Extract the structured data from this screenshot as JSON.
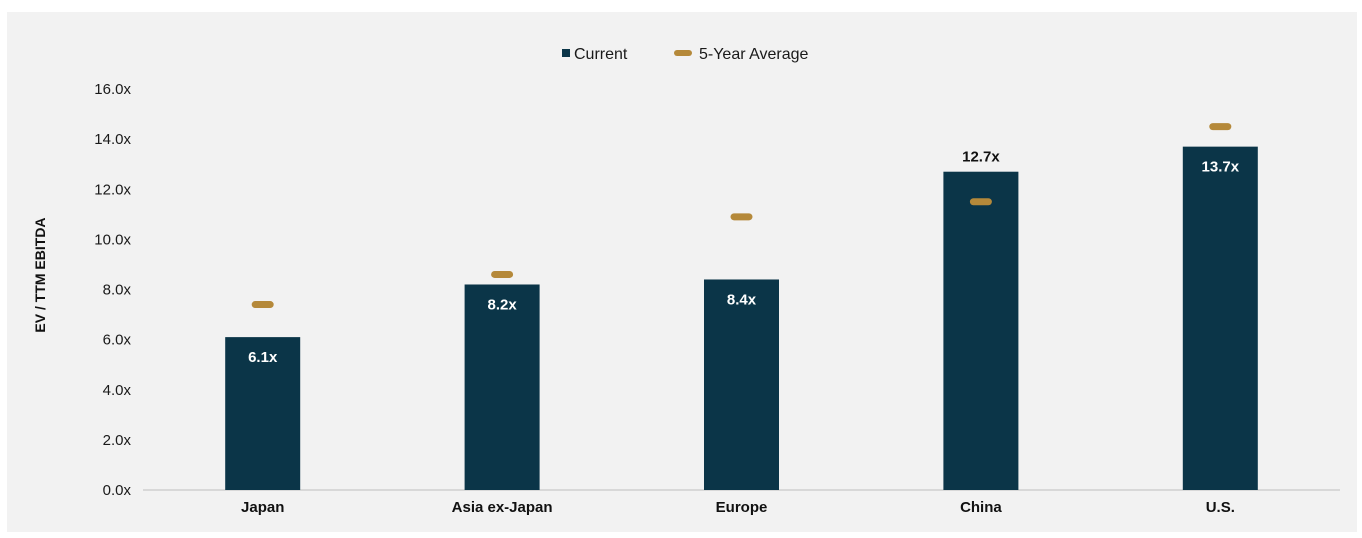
{
  "colors": {
    "current": "#0b3548",
    "average": "#b5893a",
    "panel": "#f2f2f2",
    "label_inside": "#ffffff",
    "label_outside": "#111111"
  },
  "legend": {
    "current_label": "Current",
    "average_label": "5-Year Average"
  },
  "chart_data": {
    "type": "bar",
    "title": "",
    "xlabel": "",
    "ylabel": "EV / TTM EBITDA",
    "ylim": [
      0,
      16
    ],
    "yticks": [
      "0.0x",
      "2.0x",
      "4.0x",
      "6.0x",
      "8.0x",
      "10.0x",
      "12.0x",
      "14.0x",
      "16.0x"
    ],
    "grid": false,
    "legend_position": "top-center",
    "categories": [
      "Japan",
      "Asia ex-Japan",
      "Europe",
      "China",
      "U.S."
    ],
    "series": [
      {
        "name": "Current",
        "mark": "bar",
        "values": [
          6.1,
          8.2,
          8.4,
          12.7,
          13.7
        ],
        "labels": [
          "6.1x",
          "8.2x",
          "8.4x",
          "12.7x",
          "13.7x"
        ]
      },
      {
        "name": "5-Year Average",
        "mark": "dash",
        "values": [
          7.4,
          8.6,
          10.9,
          11.5,
          14.5
        ]
      }
    ]
  }
}
